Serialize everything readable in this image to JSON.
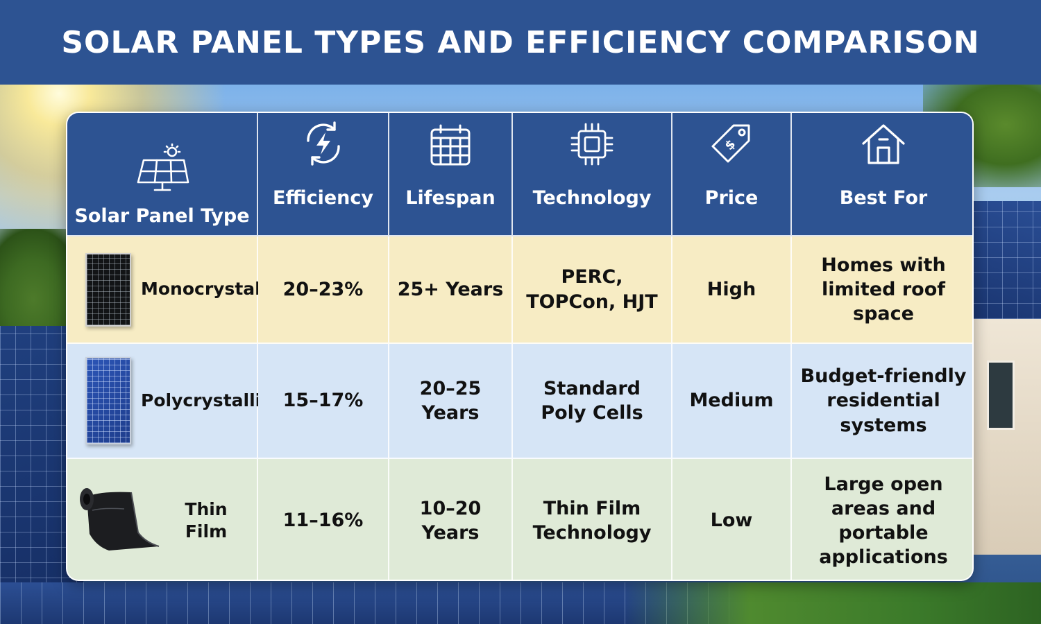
{
  "title": "SOLAR PANEL TYPES AND EFFICIENCY COMPARISON",
  "headers": {
    "type": "Solar Panel Type",
    "efficiency": "Efficiency",
    "lifespan": "Lifespan",
    "technology": "Technology",
    "price": "Price",
    "best_for": "Best For"
  },
  "header_icons": [
    "solar-panel-icon",
    "lightning-refresh-icon",
    "calendar-icon",
    "chip-icon",
    "price-tag-icon",
    "house-icon"
  ],
  "rows": [
    {
      "type": "Monocrystalline",
      "efficiency": "20–23%",
      "lifespan": "25+ Years",
      "technology": "PERC, TOPCon, HJT",
      "price": "High",
      "best_for": "Homes with limited roof space"
    },
    {
      "type": "Polycrystalline",
      "efficiency": "15–17%",
      "lifespan": "20–25 Years",
      "technology": "Standard Poly Cells",
      "price": "Medium",
      "best_for": "Budget-friendly residential systems"
    },
    {
      "type": "Thin Film",
      "efficiency": "11–16%",
      "lifespan": "10–20 Years",
      "technology": "Thin Film Technology",
      "price": "Low",
      "best_for": "Large open areas and portable applications"
    }
  ],
  "colors": {
    "header_bg": "#2d5392",
    "row_mono": "#f7ecc4",
    "row_poly": "#d6e5f6",
    "row_thin": "#dfead7"
  }
}
